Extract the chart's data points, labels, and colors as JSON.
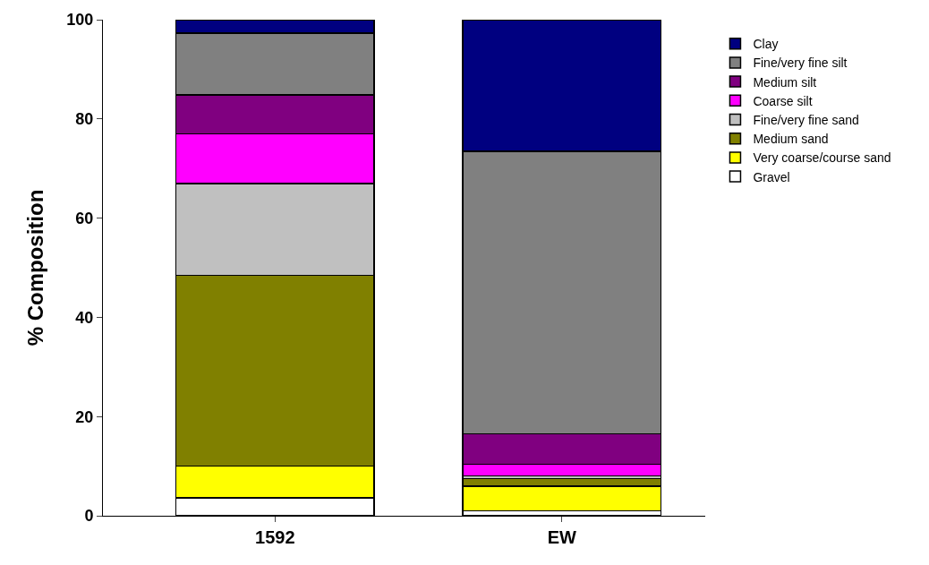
{
  "chart_data": {
    "type": "bar",
    "stacked": true,
    "ylabel": "% Composition",
    "categories": [
      "1592",
      "EW"
    ],
    "series": [
      {
        "name": "Gravel",
        "color": "#ffffff",
        "values": [
          3.6,
          1
        ]
      },
      {
        "name": "Very coarse/course sand",
        "color": "#ffff00",
        "values": [
          6.4,
          5
        ]
      },
      {
        "name": "Medium sand",
        "color": "#808000",
        "values": [
          38.5,
          1.5
        ]
      },
      {
        "name": "Fine/very fine sand",
        "color": "#c0c0c0",
        "values": [
          18.5,
          0.5
        ]
      },
      {
        "name": "Coarse silt",
        "color": "#ff00ff",
        "values": [
          10,
          2.4
        ]
      },
      {
        "name": "Medium silt",
        "color": "#800080",
        "values": [
          7.8,
          6.1
        ]
      },
      {
        "name": "Fine/very fine silt",
        "color": "#808080",
        "values": [
          12.5,
          57
        ]
      },
      {
        "name": "Clay",
        "color": "#000080",
        "values": [
          2.7,
          26.5
        ]
      }
    ],
    "ylim": [
      0,
      100
    ],
    "yticks": [
      0,
      20,
      40,
      60,
      80,
      100
    ],
    "grid": false,
    "legend": "top right"
  }
}
